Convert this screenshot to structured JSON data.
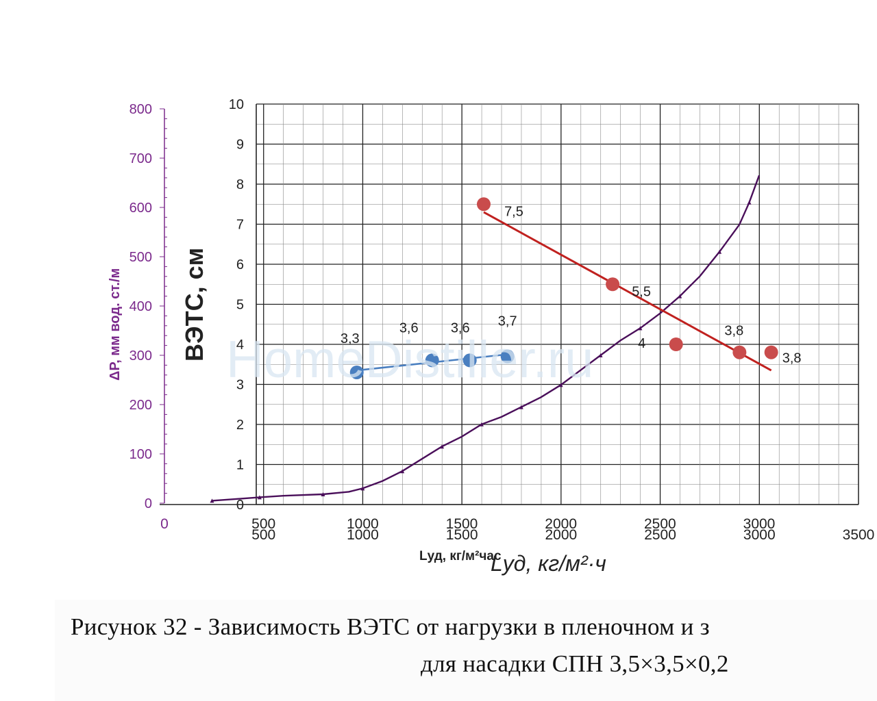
{
  "watermark": "HomeDistiller.ru",
  "caption": {
    "line1": "Рисунок 32 - Зависимость ВЭТС от нагрузки в пленочном и з",
    "line2": "для насадки СПН 3,5×3,5×0,2"
  },
  "colors": {
    "pressure_axis": "#7b2a8c",
    "pressure_curve": "#4a0f5a",
    "blue_series": "#4a7fc0",
    "red_series": "#c94c4c",
    "red_line": "#c0211f",
    "grid": "#222222",
    "text": "#222222"
  },
  "chart_data": [
    {
      "type": "scatter",
      "x": {
        "label": "Lуд, кг/м²·ч",
        "ticks": [
          0,
          500,
          1000,
          1500,
          2000,
          2500,
          3000,
          3500
        ],
        "range": [
          0,
          3500
        ]
      },
      "y": {
        "label": "ВЭТС, см",
        "ticks": [
          0,
          1,
          2,
          3,
          4,
          5,
          6,
          7,
          8,
          9,
          10
        ],
        "range": [
          0,
          10
        ]
      },
      "grid": true,
      "series": [
        {
          "color": "#4a7fc0",
          "points": [
            [
              970,
              3.3
            ],
            [
              1350,
              3.6
            ],
            [
              1540,
              3.6
            ],
            [
              1730,
              3.7
            ]
          ],
          "labels": [
            "3,3",
            "3,6",
            "3,6",
            "3,7"
          ],
          "trend": [
            [
              970,
              3.35
            ],
            [
              1730,
              3.75
            ]
          ]
        },
        {
          "color": "#c94c4c",
          "points": [
            [
              1610,
              7.5
            ],
            [
              2260,
              5.5
            ],
            [
              2580,
              4.0
            ],
            [
              2900,
              3.8
            ],
            [
              3060,
              3.8
            ]
          ],
          "labels": [
            "7,5",
            "5,5",
            "4",
            "3,8",
            "3,8"
          ],
          "trend": [
            [
              1610,
              7.3
            ],
            [
              3060,
              3.35
            ]
          ]
        }
      ]
    },
    {
      "type": "line",
      "x": {
        "label": "Lуд, кг/м²час",
        "ticks": [
          0,
          500,
          1000,
          1500,
          2000,
          2500,
          3000
        ],
        "range": [
          0,
          3000
        ]
      },
      "y": {
        "label": "ΔP, мм вод. ст./м",
        "ticks": [
          0,
          100,
          200,
          300,
          400,
          500,
          600,
          700,
          800
        ],
        "range": [
          0,
          800
        ]
      },
      "series": [
        {
          "color": "#4a0f5a",
          "points": [
            [
              240,
              5
            ],
            [
              350,
              8
            ],
            [
              480,
              12
            ],
            [
              600,
              15
            ],
            [
              800,
              18
            ],
            [
              930,
              23
            ],
            [
              1000,
              30
            ],
            [
              1100,
              45
            ],
            [
              1200,
              65
            ],
            [
              1300,
              90
            ],
            [
              1400,
              115
            ],
            [
              1500,
              135
            ],
            [
              1600,
              160
            ],
            [
              1700,
              175
            ],
            [
              1800,
              195
            ],
            [
              1900,
              215
            ],
            [
              2000,
              240
            ],
            [
              2100,
              270
            ],
            [
              2200,
              300
            ],
            [
              2300,
              330
            ],
            [
              2400,
              355
            ],
            [
              2500,
              385
            ],
            [
              2600,
              420
            ],
            [
              2700,
              460
            ],
            [
              2800,
              510
            ],
            [
              2900,
              565
            ],
            [
              2950,
              610
            ],
            [
              3000,
              665
            ]
          ]
        }
      ]
    }
  ]
}
